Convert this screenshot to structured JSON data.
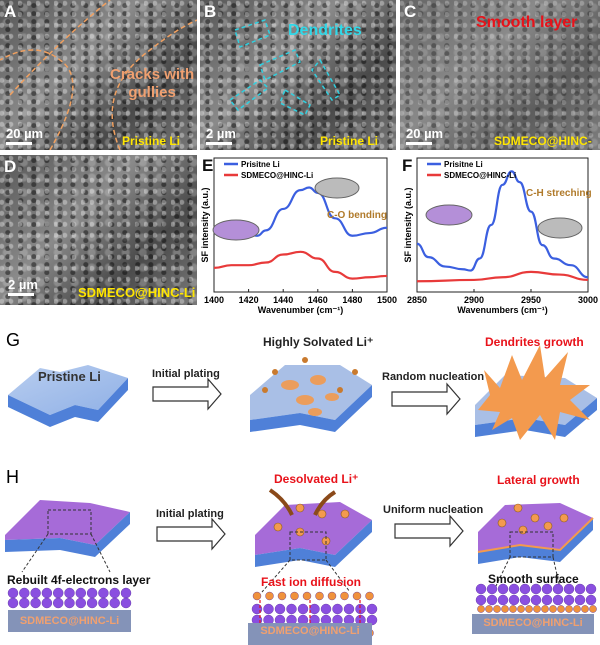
{
  "panels": {
    "A": {
      "label": "A",
      "annotation": "Cracks with\ngullies",
      "scale": "20 µm",
      "sample": "Pristine Li"
    },
    "B": {
      "label": "B",
      "annotation": "Dendrites",
      "scale": "2 µm",
      "sample": "Pristine Li"
    },
    "C": {
      "label": "C",
      "annotation": "Smooth layer",
      "scale": "20 µm",
      "sample": "SDMECO@HINC-Li"
    },
    "D": {
      "label": "D",
      "scale": "2 µm",
      "sample": "SDMECO@HINC-Li"
    }
  },
  "chart_data": [
    {
      "panel": "E",
      "type": "line",
      "xlabel": "Wavenumber (cm⁻¹)",
      "ylabel": "SF intensity (a.u.)",
      "xlim": [
        1400,
        1500
      ],
      "ylim": [
        0,
        1
      ],
      "xticks": [
        "1400",
        "1420",
        "1440",
        "1460",
        "1480",
        "1500"
      ],
      "annotation": "C-O bending",
      "legend": "top-left",
      "series": [
        {
          "name": "Prisitne Li",
          "color": "#3b5fe0",
          "x": [
            1400,
            1410,
            1420,
            1425,
            1430,
            1440,
            1450,
            1455,
            1460,
            1470,
            1480,
            1490,
            1500
          ],
          "y": [
            0.45,
            0.46,
            0.43,
            0.42,
            0.46,
            0.62,
            0.76,
            0.78,
            0.74,
            0.55,
            0.42,
            0.44,
            0.48
          ]
        },
        {
          "name": "SDMECO@HINC-Li",
          "color": "#e83a3a",
          "x": [
            1400,
            1410,
            1420,
            1430,
            1440,
            1450,
            1460,
            1470,
            1480,
            1490,
            1500
          ],
          "y": [
            0.18,
            0.2,
            0.2,
            0.22,
            0.28,
            0.3,
            0.25,
            0.15,
            0.1,
            0.11,
            0.12
          ]
        }
      ]
    },
    {
      "panel": "F",
      "type": "line",
      "xlabel": "Wavenumbers (cm⁻¹)",
      "ylabel": "SF intensity (a.u.)",
      "xlim": [
        2850,
        3000
      ],
      "ylim": [
        0,
        1
      ],
      "xticks": [
        "2850",
        "2900",
        "2950",
        "3000"
      ],
      "annotation": "C-H streching",
      "legend": "top-left",
      "series": [
        {
          "name": "Prisitne Li",
          "color": "#3b5fe0",
          "x": [
            2850,
            2860,
            2875,
            2890,
            2897,
            2905,
            2915,
            2925,
            2933,
            2940,
            2950,
            2960,
            2970,
            2985,
            3000
          ],
          "y": [
            0.36,
            0.26,
            0.19,
            0.17,
            0.16,
            0.25,
            0.5,
            0.8,
            0.9,
            0.82,
            0.6,
            0.35,
            0.25,
            0.2,
            0.11
          ]
        },
        {
          "name": "SDMECO@HINC-Li",
          "color": "#e83a3a",
          "x": [
            2850,
            2900,
            2925,
            2950,
            2975,
            3000
          ],
          "y": [
            0.08,
            0.09,
            0.11,
            0.15,
            0.13,
            0.09
          ]
        }
      ]
    }
  ],
  "schematic": {
    "G": {
      "label": "G",
      "pristine": "Pristine Li",
      "step1": "Initial plating",
      "stage2": "Highly Solvated Li⁺",
      "step2": "Random nucleation",
      "stage3": "Dendrites growth"
    },
    "H": {
      "label": "H",
      "layer": "Rebuilt 4f-electrons layer",
      "step1": "Initial plating",
      "stage2": "Desolvated Li⁺",
      "diffusion": "Fast ion diffusion",
      "step2": "Uniform nucleation",
      "stage3": "Lateral growth",
      "surface": "Smooth surface",
      "substrate": "SDMECO@HINC-Li"
    }
  },
  "colors": {
    "lithium": "#5b8fe0",
    "layer": "#9b5fd6",
    "li_ion": "#f0923c",
    "highlight": "#e8121a",
    "label_yellow": "#ffe600"
  }
}
